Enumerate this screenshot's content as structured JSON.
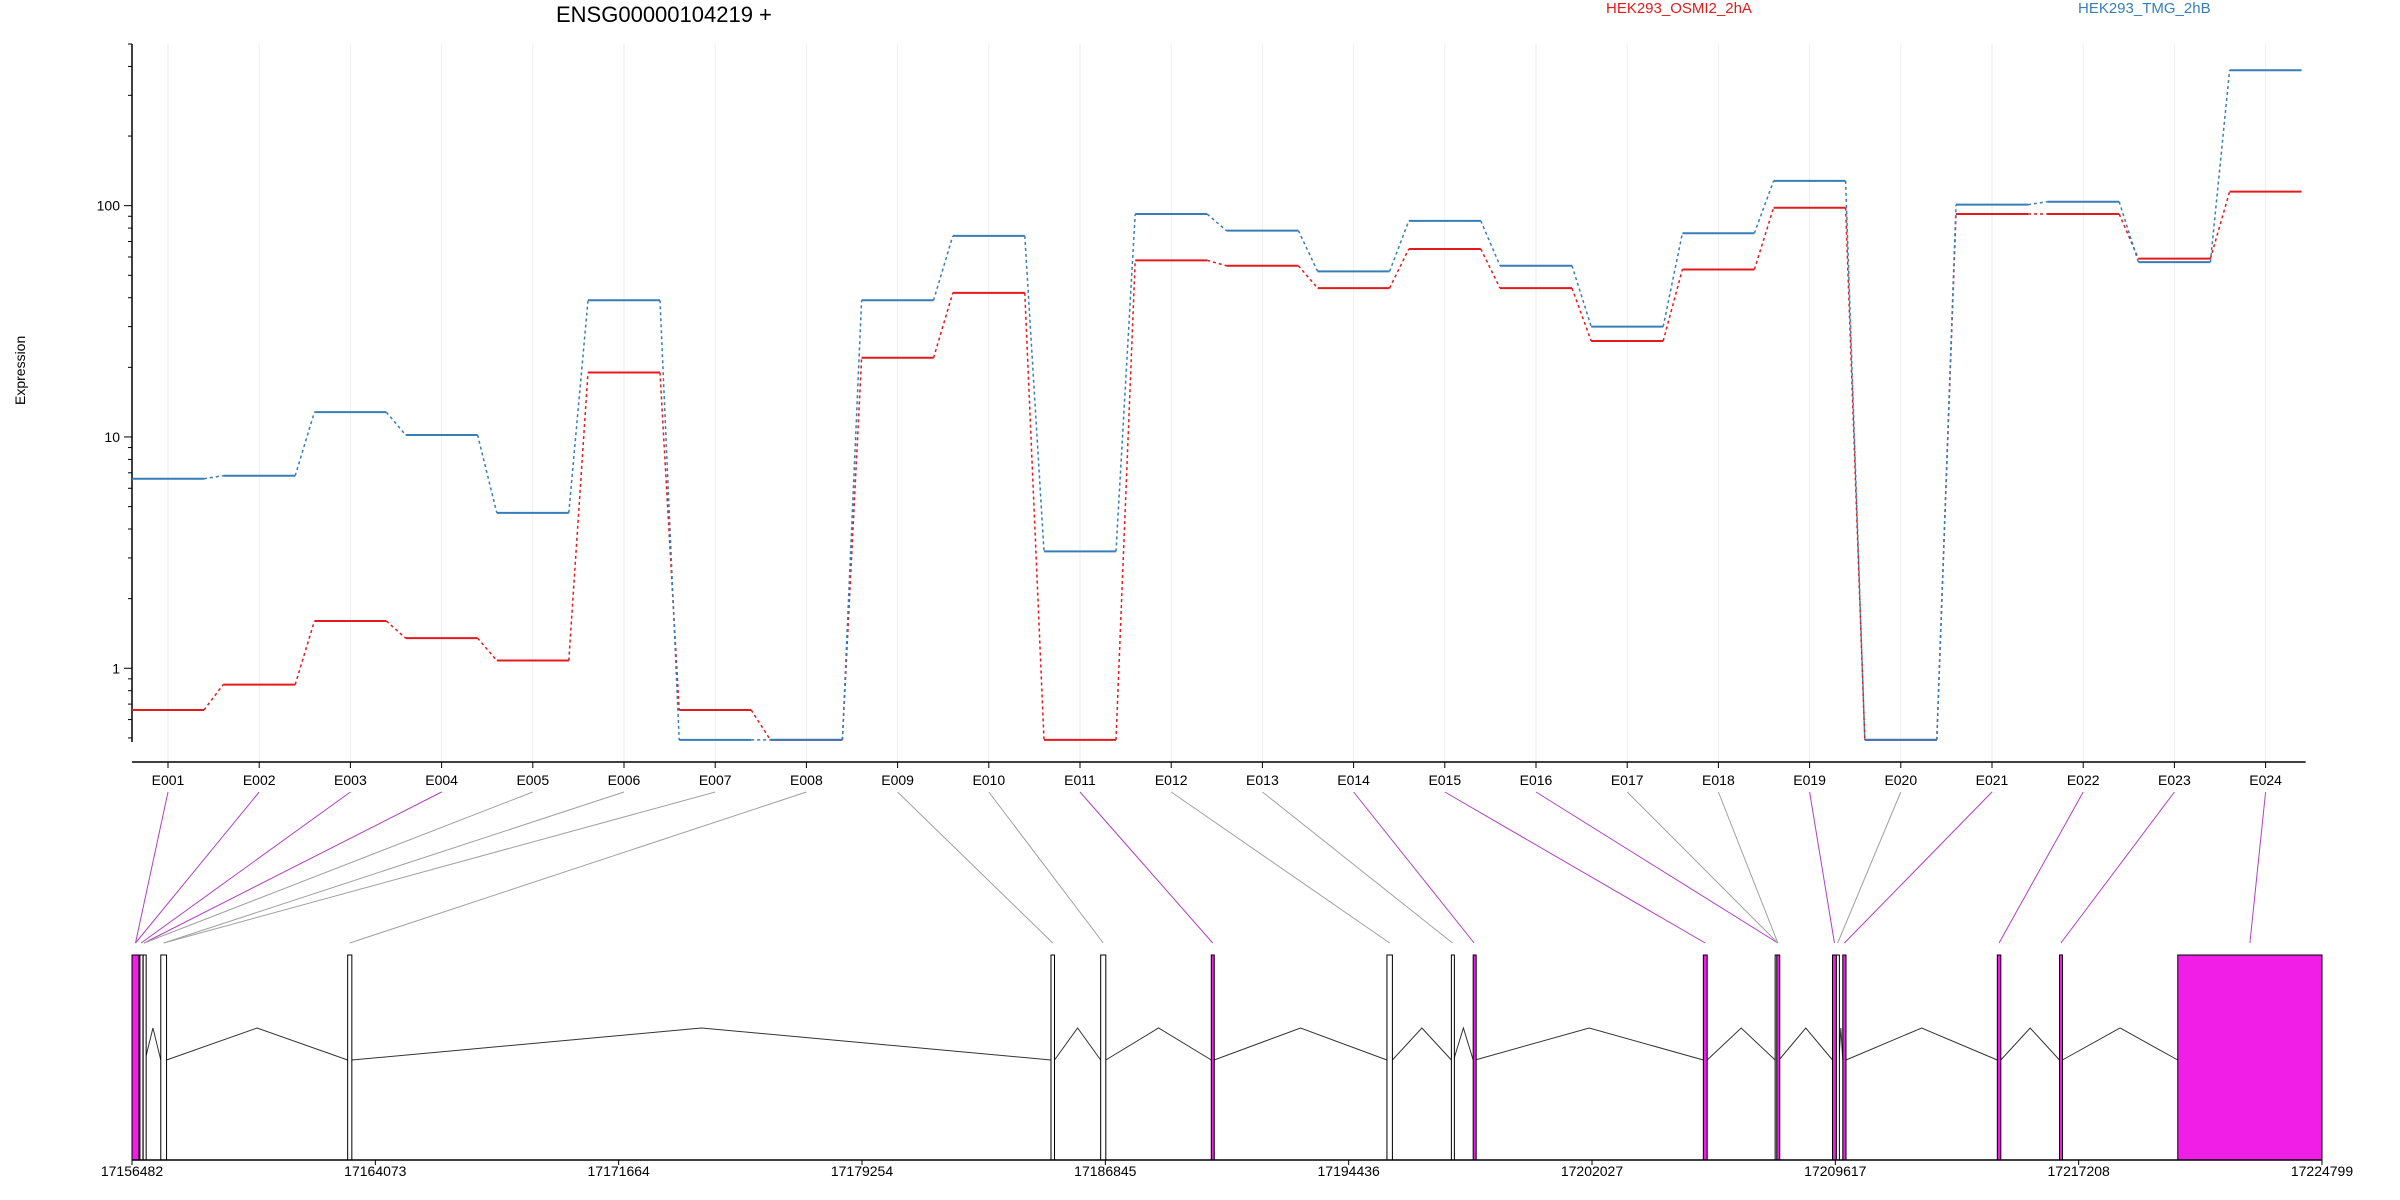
{
  "chart_data": {
    "type": "line",
    "title": "ENSG00000104219 +",
    "ylabel": "Expression",
    "yscale": "log",
    "ylim": [
      0.48,
      500
    ],
    "yticks": [
      1,
      10,
      100
    ],
    "ytick_labels": [
      "1",
      "10",
      "100"
    ],
    "categories": [
      "E001",
      "E002",
      "E003",
      "E004",
      "E005",
      "E006",
      "E007",
      "E008",
      "E009",
      "E010",
      "E011",
      "E012",
      "E013",
      "E014",
      "E015",
      "E016",
      "E017",
      "E018",
      "E019",
      "E020",
      "E021",
      "E022",
      "E023",
      "E024"
    ],
    "series": [
      {
        "name": "HEK293_OSMI2_2hA",
        "color": "#e41a1c",
        "values": [
          0.66,
          0.85,
          1.6,
          1.35,
          1.08,
          19,
          0.66,
          0.49,
          22,
          42,
          0.49,
          58,
          55,
          44,
          65,
          44,
          26,
          53,
          98,
          0.49,
          92,
          92,
          59,
          115
        ]
      },
      {
        "name": "HEK293_TMG_2hB",
        "color": "#377eb8",
        "values": [
          6.6,
          6.8,
          12.8,
          10.2,
          4.7,
          39,
          0.49,
          0.49,
          39,
          74,
          3.2,
          92,
          78,
          52,
          86,
          55,
          30,
          76,
          128,
          0.49,
          101,
          104,
          57,
          385
        ]
      }
    ],
    "gene_model": {
      "genomic_ticks": [
        "17156482",
        "17164073",
        "17171664",
        "17179254",
        "17186845",
        "17194436",
        "17202027",
        "17209617",
        "17217208",
        "17224799"
      ],
      "genomic_range": [
        17156482,
        17224799
      ],
      "exons": [
        {
          "start": 17156482,
          "end": 17156700,
          "highlight": true
        },
        {
          "start": 17156730,
          "end": 17156800,
          "highlight": false
        },
        {
          "start": 17156830,
          "end": 17156890,
          "highlight": false
        },
        {
          "start": 17157380,
          "end": 17157560,
          "highlight": false
        },
        {
          "start": 17163210,
          "end": 17163340,
          "highlight": false
        },
        {
          "start": 17185150,
          "end": 17185260,
          "highlight": false
        },
        {
          "start": 17186700,
          "end": 17186860,
          "highlight": false
        },
        {
          "start": 17190150,
          "end": 17190240,
          "highlight": true
        },
        {
          "start": 17195630,
          "end": 17195800,
          "highlight": false
        },
        {
          "start": 17197640,
          "end": 17197710,
          "highlight": false
        },
        {
          "start": 17198320,
          "end": 17198380,
          "highlight": true
        },
        {
          "start": 17205500,
          "end": 17205620,
          "highlight": true
        },
        {
          "start": 17207740,
          "end": 17207790,
          "highlight": false
        },
        {
          "start": 17207790,
          "end": 17207860,
          "highlight": true
        },
        {
          "start": 17209530,
          "end": 17209650,
          "highlight": true
        },
        {
          "start": 17209650,
          "end": 17209730,
          "highlight": false
        },
        {
          "start": 17209850,
          "end": 17209950,
          "highlight": true
        },
        {
          "start": 17214670,
          "end": 17214780,
          "highlight": true
        },
        {
          "start": 17216610,
          "end": 17216700,
          "highlight": true
        },
        {
          "start": 17220300,
          "end": 17224799,
          "highlight": true
        }
      ],
      "category_exon_map": [
        0,
        0,
        1,
        2,
        2,
        3,
        3,
        4,
        5,
        6,
        7,
        8,
        9,
        10,
        11,
        13,
        13,
        13,
        14,
        15,
        16,
        17,
        18,
        19
      ],
      "category_highlight": [
        true,
        true,
        true,
        true,
        false,
        false,
        false,
        false,
        false,
        false,
        true,
        false,
        false,
        true,
        true,
        true,
        false,
        false,
        true,
        false,
        true,
        true,
        true,
        true
      ],
      "exon_color": "#f01ee6",
      "plain_color": "#ffffff"
    }
  }
}
